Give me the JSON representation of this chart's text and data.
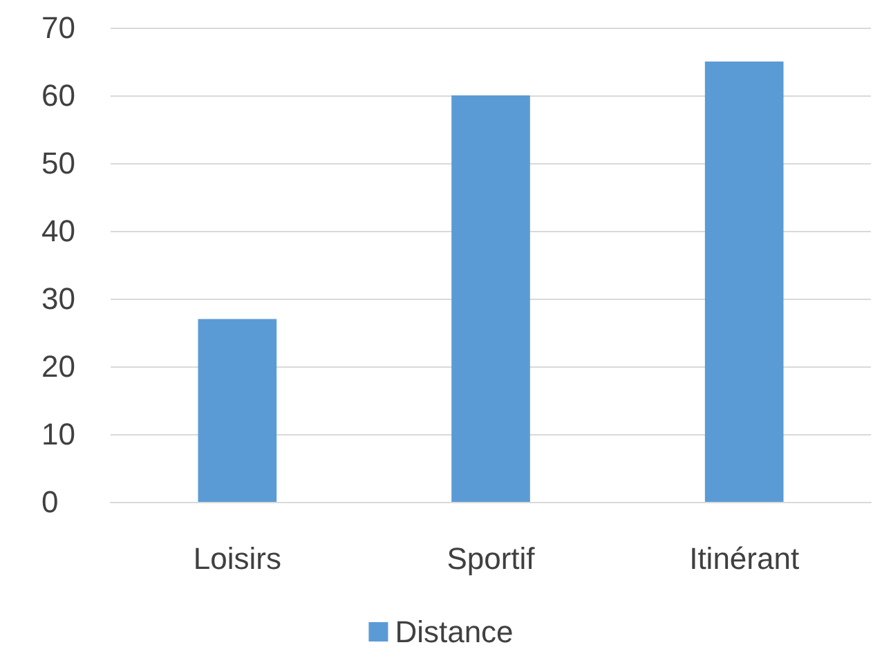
{
  "chart_data": {
    "type": "bar",
    "categories": [
      "Loisirs",
      "Sportif",
      "Itinérant"
    ],
    "series": [
      {
        "name": "Distance",
        "color": "#5b9bd5",
        "values": [
          27,
          60,
          65
        ]
      }
    ],
    "ylim": [
      0,
      70
    ],
    "yticks": [
      0,
      10,
      20,
      30,
      40,
      50,
      60,
      70
    ],
    "grid": "y",
    "legend": "bottom"
  }
}
